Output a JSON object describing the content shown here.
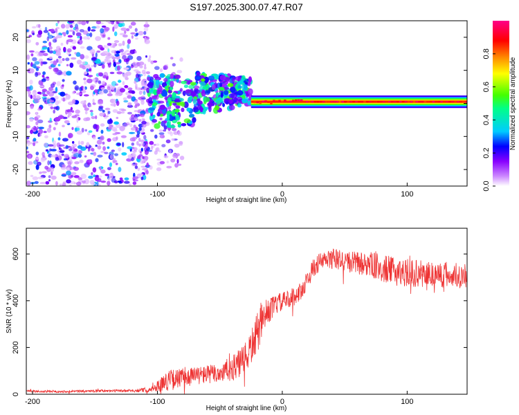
{
  "figure_title": "S197.2025.300.07.47.R07",
  "chart_data": [
    {
      "type": "heatmap",
      "title": "S197.2025.300.07.47.R07",
      "xlabel": "Height of straight line (km)",
      "ylabel": "Frequency (Hz)",
      "xlim": [
        -205,
        148
      ],
      "ylim": [
        -25,
        25
      ],
      "x_ticks": [
        -200,
        -100,
        0,
        100
      ],
      "y_ticks": [
        -20,
        -10,
        0,
        10,
        20
      ],
      "x_tick_labels": [
        "-200",
        "-100",
        "0",
        "100"
      ],
      "y_tick_labels": [
        "-20",
        "-10",
        "0",
        "10",
        "20"
      ],
      "colorbar": {
        "label": "Normalized spectral amplitude",
        "range": [
          0,
          1
        ],
        "ticks": [
          "0.0",
          "0.2",
          "0.4",
          "0.6",
          "0.8"
        ],
        "colors": [
          "#ffffff",
          "#cc88ff",
          "#8800ff",
          "#0000ff",
          "#00ccff",
          "#00ff88",
          "#44ff00",
          "#ffff00",
          "#ff8800",
          "#ff0000",
          "#ff0088"
        ]
      },
      "regions": [
        {
          "x_range": [
            -205,
            -108
          ],
          "freq_range": [
            -25,
            25
          ],
          "amplitude": "low (0.05-0.35), random speckle"
        },
        {
          "x_range": [
            -108,
            -25
          ],
          "freq_range": [
            -12,
            13
          ],
          "amplitude": "medium (0.3-0.55), scattered blobs"
        },
        {
          "x_range": [
            -25,
            148
          ],
          "center_freq": 0.5,
          "half_width": 1.5,
          "amplitude": "narrow line, peak ~0.95"
        }
      ]
    },
    {
      "type": "line",
      "xlabel": "Height of straight line (km)",
      "ylabel": "SNR (10 * v/v)",
      "xlim": [
        -205,
        148
      ],
      "ylim": [
        0,
        710
      ],
      "x_ticks": [
        -200,
        -100,
        0,
        100
      ],
      "y_ticks": [
        0,
        200,
        400,
        600
      ],
      "x_tick_labels": [
        "-200",
        "-100",
        "0",
        "100"
      ],
      "y_tick_labels": [
        "0",
        "200",
        "400",
        "600"
      ],
      "series": [
        {
          "name": "SNR",
          "color": "#ee3333",
          "x": [
            -205,
            -180,
            -150,
            -120,
            -105,
            -100,
            -95,
            -90,
            -80,
            -70,
            -60,
            -50,
            -40,
            -30,
            -25,
            -20,
            -17,
            -15,
            -10,
            -5,
            0,
            10,
            15,
            20,
            25,
            30,
            40,
            50,
            60,
            70,
            80,
            90,
            100,
            110,
            120,
            130,
            148
          ],
          "mean": [
            12,
            12,
            14,
            15,
            20,
            35,
            50,
            60,
            70,
            80,
            85,
            90,
            110,
            145,
            200,
            260,
            300,
            330,
            360,
            385,
            395,
            420,
            440,
            490,
            540,
            565,
            580,
            570,
            560,
            555,
            540,
            525,
            520,
            515,
            515,
            510,
            510
          ],
          "spread": [
            10,
            10,
            10,
            12,
            25,
            45,
            75,
            90,
            85,
            80,
            80,
            90,
            110,
            140,
            150,
            180,
            160,
            120,
            100,
            90,
            80,
            80,
            80,
            80,
            80,
            80,
            90,
            90,
            100,
            110,
            120,
            120,
            120,
            120,
            120,
            120,
            110
          ]
        }
      ]
    }
  ]
}
